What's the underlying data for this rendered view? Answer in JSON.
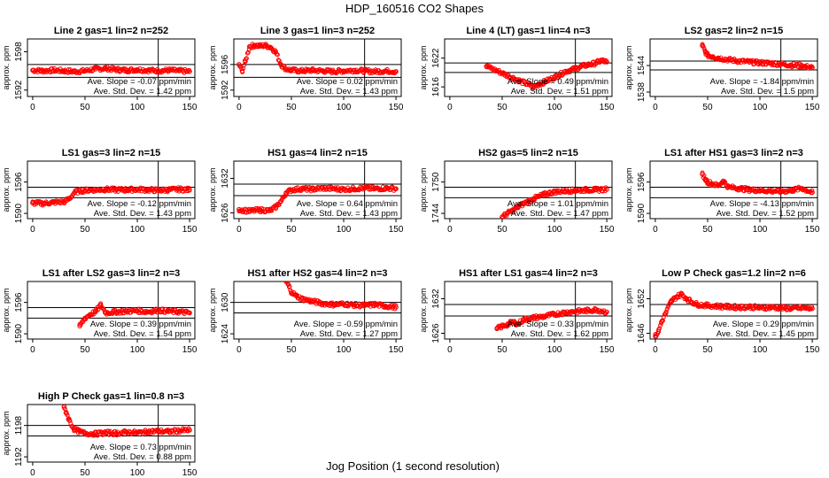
{
  "figure": {
    "title": "HDP_160516  CO2 Shapes",
    "xlabel": "Jog Position (1 second resolution)",
    "marker_color": "#ff0000",
    "line_color": "#000000",
    "stat_slope_prefix": "Ave. Slope = ",
    "stat_slope_unit": " ppm/min",
    "stat_std_prefix": "Ave. Std. Dev. = ",
    "stat_std_unit": " ppm"
  },
  "chart_data": [
    {
      "type": "scatter",
      "title": "Line 2 gas=1 lin=2 n=252",
      "ylabel": "approx. ppm",
      "xlim": [
        -5,
        155
      ],
      "ylim": [
        1591,
        1600
      ],
      "xticks": [
        0,
        50,
        100,
        150
      ],
      "yticks": [
        1592,
        1598
      ],
      "hlines": [
        1596,
        1594
      ],
      "vline": 120,
      "slope": "-0.07",
      "std": "1.42",
      "x": [
        0,
        10,
        20,
        30,
        40,
        50,
        60,
        70,
        80,
        90,
        100,
        110,
        120,
        130,
        140,
        150
      ],
      "y": [
        1595.1,
        1595.0,
        1595.1,
        1595.0,
        1594.9,
        1595.0,
        1595.3,
        1595.4,
        1595.2,
        1595.1,
        1595.2,
        1595.1,
        1595.0,
        1595.1,
        1595.0,
        1594.9
      ]
    },
    {
      "type": "scatter",
      "title": "Line 3 gas=1 lin=3 n=252",
      "ylabel": "approx. ppm",
      "xlim": [
        -5,
        155
      ],
      "ylim": [
        1591,
        1600
      ],
      "xticks": [
        0,
        50,
        100,
        150
      ],
      "yticks": [
        1592,
        1596
      ],
      "hlines": [
        1596,
        1594
      ],
      "vline": 120,
      "slope": "0.02",
      "std": "1.43",
      "x": [
        0,
        3,
        6,
        10,
        15,
        20,
        25,
        30,
        35,
        40,
        45,
        50,
        60,
        70,
        80,
        90,
        100,
        110,
        120,
        130,
        140,
        150
      ],
      "y": [
        1596.0,
        1595.0,
        1596.5,
        1598.8,
        1599.0,
        1598.9,
        1599.0,
        1598.7,
        1598.0,
        1596.0,
        1595.3,
        1595.1,
        1595.0,
        1595.1,
        1595.0,
        1594.9,
        1595.0,
        1595.1,
        1595.0,
        1594.9,
        1595.0,
        1594.9
      ]
    },
    {
      "type": "scatter",
      "title": "Line 4 (LT) gas=1 lin=4 n=3",
      "ylabel": "approx. ppm",
      "xlim": [
        -5,
        155
      ],
      "ylim": [
        1614,
        1626
      ],
      "xticks": [
        0,
        50,
        100,
        150
      ],
      "yticks": [
        1616,
        1622
      ],
      "hlines": [
        1621,
        1619
      ],
      "vline": 120,
      "slope": "0.49",
      "std": "1.51",
      "x": [
        35,
        80,
        85,
        90,
        95,
        100,
        105,
        110,
        115,
        120,
        125,
        130,
        135,
        140,
        145,
        150
      ],
      "y": [
        1620.3,
        1616.0,
        1616.5,
        1617.0,
        1617.5,
        1618.0,
        1618.5,
        1619.2,
        1619.5,
        1619.8,
        1620.2,
        1620.5,
        1620.7,
        1621.0,
        1621.5,
        1621.2
      ]
    },
    {
      "type": "scatter",
      "title": "LS2 gas=2 lin=2 n=15",
      "ylabel": "approx. ppm",
      "xlim": [
        -5,
        155
      ],
      "ylim": [
        1537,
        1550
      ],
      "xticks": [
        0,
        50,
        100,
        150
      ],
      "yticks": [
        1538,
        1544
      ],
      "hlines": [
        1545,
        1543
      ],
      "vline": 120,
      "slope": "-1.84",
      "std": "1.5",
      "x": [
        45,
        48,
        50,
        55,
        60,
        70,
        80,
        90,
        100,
        110,
        120,
        130,
        140,
        150
      ],
      "y": [
        1548.5,
        1547.0,
        1546.3,
        1546.0,
        1545.7,
        1545.3,
        1545.0,
        1544.8,
        1544.6,
        1544.5,
        1544.3,
        1544.1,
        1543.9,
        1543.5
      ]
    },
    {
      "type": "scatter",
      "title": "LS1 gas=3 lin=2 n=15",
      "ylabel": "approx. ppm",
      "xlim": [
        -5,
        155
      ],
      "ylim": [
        1589,
        1600
      ],
      "xticks": [
        0,
        50,
        100,
        150
      ],
      "yticks": [
        1590,
        1596
      ],
      "hlines": [
        1595,
        1593
      ],
      "vline": 120,
      "slope": "-0.12",
      "std": "1.43",
      "x": [
        0,
        10,
        20,
        30,
        35,
        40,
        45,
        50,
        60,
        70,
        80,
        90,
        100,
        110,
        120,
        130,
        140,
        150
      ],
      "y": [
        1592.0,
        1591.9,
        1592.1,
        1592.2,
        1592.8,
        1594.0,
        1594.3,
        1594.4,
        1594.5,
        1594.6,
        1594.5,
        1594.5,
        1594.6,
        1594.5,
        1594.4,
        1594.5,
        1594.6,
        1594.5
      ]
    },
    {
      "type": "scatter",
      "title": "HS1 gas=4 lin=2 n=15",
      "ylabel": "approx. ppm",
      "xlim": [
        -5,
        155
      ],
      "ylim": [
        1625,
        1635
      ],
      "xticks": [
        0,
        50,
        100,
        150
      ],
      "yticks": [
        1626,
        1632
      ],
      "hlines": [
        1631,
        1629
      ],
      "vline": 120,
      "slope": "0.64",
      "std": "1.43",
      "x": [
        0,
        10,
        20,
        30,
        35,
        40,
        45,
        50,
        60,
        70,
        80,
        90,
        100,
        110,
        120,
        130,
        140,
        150
      ],
      "y": [
        1626.6,
        1626.3,
        1626.5,
        1626.4,
        1627.0,
        1628.0,
        1629.5,
        1630.0,
        1630.2,
        1630.1,
        1630.3,
        1630.2,
        1630.1,
        1630.2,
        1630.3,
        1630.2,
        1630.3,
        1630.2
      ]
    },
    {
      "type": "scatter",
      "title": "HS2 gas=5 lin=2 n=15",
      "ylabel": "approx. ppm",
      "xlim": [
        -5,
        155
      ],
      "ylim": [
        1743,
        1754
      ],
      "xticks": [
        0,
        50,
        100,
        150
      ],
      "yticks": [
        1744,
        1750
      ],
      "hlines": [
        1749,
        1747
      ],
      "vline": 120,
      "slope": "1.01",
      "std": "1.47",
      "x": [
        50,
        55,
        60,
        65,
        70,
        75,
        80,
        85,
        90,
        95,
        100,
        110,
        120,
        130,
        140,
        150
      ],
      "y": [
        1743.3,
        1744.0,
        1744.5,
        1745.2,
        1745.8,
        1746.3,
        1746.8,
        1747.2,
        1747.6,
        1747.9,
        1748.1,
        1748.3,
        1748.4,
        1748.5,
        1748.5,
        1748.6
      ]
    },
    {
      "type": "scatter",
      "title": "LS1 after HS1 gas=3 lin=2 n=3",
      "ylabel": "approx. ppm",
      "xlim": [
        -5,
        155
      ],
      "ylim": [
        1589,
        1600
      ],
      "xticks": [
        0,
        50,
        100,
        150
      ],
      "yticks": [
        1590,
        1596
      ],
      "hlines": [
        1595,
        1593
      ],
      "vline": 120,
      "slope": "-4.13",
      "std": "1.52",
      "x": [
        45,
        48,
        50,
        55,
        60,
        65,
        70,
        80,
        90,
        100,
        110,
        120,
        130,
        140,
        150
      ],
      "y": [
        1597.5,
        1596.5,
        1596.0,
        1595.6,
        1595.3,
        1596.2,
        1595.0,
        1594.8,
        1594.5,
        1594.4,
        1594.3,
        1594.2,
        1594.4,
        1594.8,
        1594.0
      ]
    },
    {
      "type": "scatter",
      "title": "LS1 after LS2 gas=3 lin=2 n=3",
      "ylabel": "approx. ppm",
      "xlim": [
        -5,
        155
      ],
      "ylim": [
        1589,
        1600
      ],
      "xticks": [
        0,
        50,
        100,
        150
      ],
      "yticks": [
        1590,
        1596
      ],
      "hlines": [
        1595,
        1593
      ],
      "vline": 120,
      "slope": "0.39",
      "std": "1.54",
      "x": [
        45,
        50,
        55,
        60,
        65,
        70,
        80,
        90,
        100,
        110,
        120,
        130,
        140,
        150
      ],
      "y": [
        1591.5,
        1593.0,
        1593.7,
        1594.2,
        1595.5,
        1594.0,
        1594.2,
        1594.3,
        1594.4,
        1594.2,
        1594.5,
        1594.3,
        1594.2,
        1594.0
      ]
    },
    {
      "type": "scatter",
      "title": "HS1 after HS2 gas=4 lin=2 n=3",
      "ylabel": "approx. ppm",
      "xlim": [
        -5,
        155
      ],
      "ylim": [
        1623,
        1634
      ],
      "xticks": [
        0,
        50,
        100,
        150
      ],
      "yticks": [
        1624,
        1630
      ],
      "hlines": [
        1630,
        1628
      ],
      "vline": 120,
      "slope": "-0.59",
      "std": "1.27",
      "x": [
        45,
        48,
        50,
        55,
        60,
        70,
        80,
        90,
        100,
        110,
        120,
        130,
        140,
        150
      ],
      "y": [
        1634.0,
        1633.0,
        1632.0,
        1631.2,
        1630.7,
        1630.2,
        1629.8,
        1629.6,
        1629.7,
        1629.5,
        1629.4,
        1629.6,
        1629.3,
        1629.1
      ]
    },
    {
      "type": "scatter",
      "title": "HS1 after LS1 gas=4 lin=2 n=3",
      "ylabel": "approx. ppm",
      "xlim": [
        -5,
        155
      ],
      "ylim": [
        1625,
        1635
      ],
      "xticks": [
        0,
        50,
        100,
        150
      ],
      "yticks": [
        1626,
        1632
      ],
      "hlines": [
        1631,
        1629
      ],
      "vline": 120,
      "slope": "0.33",
      "std": "1.62",
      "x": [
        45,
        50,
        55,
        60,
        65,
        70,
        80,
        90,
        100,
        110,
        120,
        130,
        140,
        150
      ],
      "y": [
        1626.8,
        1627.2,
        1627.5,
        1628.0,
        1627.6,
        1628.3,
        1628.7,
        1628.9,
        1629.3,
        1629.6,
        1629.8,
        1629.9,
        1630.1,
        1629.7
      ]
    },
    {
      "type": "scatter",
      "title": "Low P Check gas=1.2 lin=2 n=6",
      "ylabel": "approx. ppm",
      "xlim": [
        -5,
        155
      ],
      "ylim": [
        1645,
        1655
      ],
      "xticks": [
        0,
        50,
        100,
        150
      ],
      "yticks": [
        1646,
        1652
      ],
      "hlines": [
        1651,
        1649
      ],
      "vline": 120,
      "slope": "0.29",
      "std": "1.45",
      "x": [
        0,
        3,
        6,
        10,
        15,
        20,
        25,
        30,
        35,
        40,
        50,
        60,
        70,
        80,
        90,
        100,
        110,
        120,
        130,
        140,
        150
      ],
      "y": [
        1645.5,
        1646.3,
        1648.0,
        1649.5,
        1651.5,
        1652.3,
        1652.8,
        1652.0,
        1651.4,
        1651.0,
        1650.8,
        1650.7,
        1650.6,
        1650.5,
        1650.6,
        1650.4,
        1650.5,
        1650.4,
        1650.3,
        1650.4,
        1650.3
      ]
    },
    {
      "type": "scatter",
      "title": "High P Check gas=1 lin=0.8 n=3",
      "ylabel": "approx. ppm",
      "xlim": [
        -5,
        155
      ],
      "ylim": [
        1191,
        1202
      ],
      "xticks": [
        0,
        50,
        100,
        150
      ],
      "yticks": [
        1192,
        1198
      ],
      "hlines": [
        1198,
        1196
      ],
      "vline": 120,
      "slope": "0.73",
      "std": "0.88",
      "x": [
        30,
        32,
        35,
        38,
        40,
        45,
        50,
        60,
        70,
        80,
        90,
        100,
        110,
        120,
        130,
        140,
        150
      ],
      "y": [
        1201.5,
        1200.5,
        1199.0,
        1197.8,
        1197.2,
        1196.8,
        1196.5,
        1196.4,
        1196.6,
        1196.5,
        1196.7,
        1196.6,
        1196.8,
        1196.9,
        1196.8,
        1197.0,
        1197.1
      ]
    }
  ]
}
